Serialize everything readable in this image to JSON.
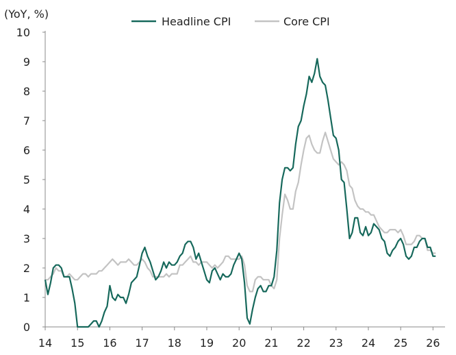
{
  "chart_data": {
    "type": "line",
    "ylabel": "(YoY, %)",
    "ylim": [
      0,
      10
    ],
    "yticks": [
      "0",
      "1",
      "2",
      "3",
      "4",
      "5",
      "6",
      "7",
      "8",
      "9",
      "10"
    ],
    "xlim": [
      "Jan 2014",
      "Mar 2026"
    ],
    "xticks": [
      "14",
      "15",
      "16",
      "17",
      "18",
      "19",
      "20",
      "21",
      "22",
      "23",
      "24",
      "25",
      "26"
    ],
    "x_start": "Jan 2014",
    "frequency": "monthly",
    "grid": false,
    "legend_position": "top-center",
    "series": [
      {
        "name": "Headline CPI",
        "color": "#16685b",
        "values": [
          1.6,
          1.1,
          1.5,
          2.0,
          2.1,
          2.1,
          2.0,
          1.7,
          1.7,
          1.7,
          1.3,
          0.8,
          -0.1,
          0.0,
          -0.1,
          -0.2,
          0.0,
          0.1,
          0.2,
          0.2,
          0.0,
          0.2,
          0.5,
          0.7,
          1.4,
          1.0,
          0.9,
          1.1,
          1.0,
          1.0,
          0.8,
          1.1,
          1.5,
          1.6,
          1.7,
          2.1,
          2.5,
          2.7,
          2.4,
          2.2,
          1.9,
          1.6,
          1.7,
          1.9,
          2.2,
          2.0,
          2.2,
          2.1,
          2.1,
          2.2,
          2.4,
          2.5,
          2.8,
          2.9,
          2.9,
          2.7,
          2.3,
          2.5,
          2.2,
          1.9,
          1.6,
          1.5,
          1.9,
          2.0,
          1.8,
          1.6,
          1.8,
          1.7,
          1.7,
          1.8,
          2.1,
          2.3,
          2.5,
          2.3,
          1.5,
          0.3,
          0.1,
          0.6,
          1.0,
          1.3,
          1.4,
          1.2,
          1.2,
          1.4,
          1.4,
          1.7,
          2.6,
          4.2,
          5.0,
          5.4,
          5.4,
          5.3,
          5.4,
          6.2,
          6.8,
          7.0,
          7.5,
          7.9,
          8.5,
          8.3,
          8.6,
          9.1,
          8.5,
          8.3,
          8.2,
          7.7,
          7.1,
          6.5,
          6.4,
          6.0,
          5.0,
          4.9,
          4.0,
          3.0,
          3.2,
          3.7,
          3.7,
          3.2,
          3.1,
          3.4,
          3.1,
          3.2,
          3.5,
          3.4,
          3.3,
          3.0,
          2.9,
          2.5,
          2.4,
          2.6,
          2.7,
          2.9,
          3.0,
          2.8,
          2.4,
          2.3,
          2.4,
          2.7,
          2.7,
          2.9,
          3.0,
          3.0,
          2.7,
          2.7,
          2.4,
          2.4
        ]
      },
      {
        "name": "Core CPI",
        "color": "#c3c3c3",
        "values": [
          1.6,
          1.6,
          1.7,
          1.8,
          2.0,
          1.9,
          1.9,
          1.7,
          1.7,
          1.8,
          1.7,
          1.6,
          1.6,
          1.7,
          1.8,
          1.8,
          1.7,
          1.8,
          1.8,
          1.8,
          1.9,
          1.9,
          2.0,
          2.1,
          2.2,
          2.3,
          2.2,
          2.1,
          2.2,
          2.2,
          2.2,
          2.3,
          2.2,
          2.1,
          2.1,
          2.2,
          2.3,
          2.2,
          2.0,
          1.9,
          1.7,
          1.7,
          1.7,
          1.7,
          1.7,
          1.8,
          1.7,
          1.8,
          1.8,
          1.8,
          2.1,
          2.1,
          2.2,
          2.3,
          2.4,
          2.2,
          2.2,
          2.1,
          2.2,
          2.2,
          2.2,
          2.1,
          2.0,
          2.1,
          2.0,
          2.1,
          2.2,
          2.4,
          2.4,
          2.3,
          2.3,
          2.3,
          2.3,
          2.4,
          2.1,
          1.4,
          1.2,
          1.2,
          1.6,
          1.7,
          1.7,
          1.6,
          1.6,
          1.6,
          1.4,
          1.3,
          1.6,
          3.0,
          3.8,
          4.5,
          4.3,
          4.0,
          4.0,
          4.6,
          4.9,
          5.5,
          6.0,
          6.4,
          6.5,
          6.2,
          6.0,
          5.9,
          5.9,
          6.3,
          6.6,
          6.3,
          6.0,
          5.7,
          5.6,
          5.5,
          5.6,
          5.5,
          5.3,
          4.8,
          4.7,
          4.3,
          4.1,
          4.0,
          4.0,
          3.9,
          3.9,
          3.8,
          3.8,
          3.6,
          3.4,
          3.3,
          3.2,
          3.2,
          3.3,
          3.3,
          3.3,
          3.2,
          3.3,
          3.1,
          2.8,
          2.8,
          2.8,
          2.9,
          3.1,
          3.1,
          3.0,
          3.0,
          2.6,
          2.6,
          2.5,
          2.5
        ]
      }
    ]
  }
}
